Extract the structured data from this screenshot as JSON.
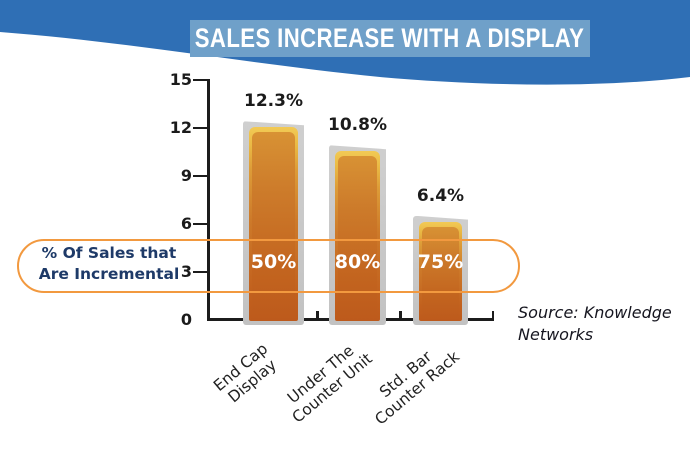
{
  "title": "SALES INCREASE WITH A DISPLAY",
  "chart_data": {
    "type": "bar",
    "title": "SALES INCREASE WITH A DISPLAY",
    "categories": [
      "End Cap Display",
      "Under The Counter Unit",
      "Std. Bar Counter Rack"
    ],
    "category_lines": [
      [
        "End Cap",
        "Display"
      ],
      [
        "Under The",
        "Counter Unit"
      ],
      [
        "Std. Bar",
        "Counter Rack"
      ]
    ],
    "values": [
      12.3,
      10.8,
      6.4
    ],
    "bar_value_labels": [
      "12.3%",
      "10.8%",
      "6.4%"
    ],
    "incremental_share_labels": [
      "50%",
      "80%",
      "75%"
    ],
    "annotation": "% Of Sales that Are Incremental",
    "source": "Source: Knowledge Networks",
    "ylim": [
      0,
      15
    ],
    "yticks": [
      15,
      12,
      9,
      6,
      3,
      0
    ],
    "grid": false,
    "legend_position": "none",
    "colors": {
      "header_band": "#2F6FB5",
      "title_box": "#6FA0C9",
      "bar_body": "#C4631F",
      "bar_body_top": "#DA9A3A",
      "bar_rim": "#EABA45",
      "bar_border": "#C8C8C8",
      "annotation_ring": "#F2993F",
      "annotation_text": "#1E3A68",
      "axis": "#1C1C1C"
    }
  },
  "annotation": {
    "line1": "% Of Sales that",
    "line2": "Are Incremental"
  },
  "source": {
    "line1": "Source: Knowledge",
    "line2": "Networks"
  }
}
